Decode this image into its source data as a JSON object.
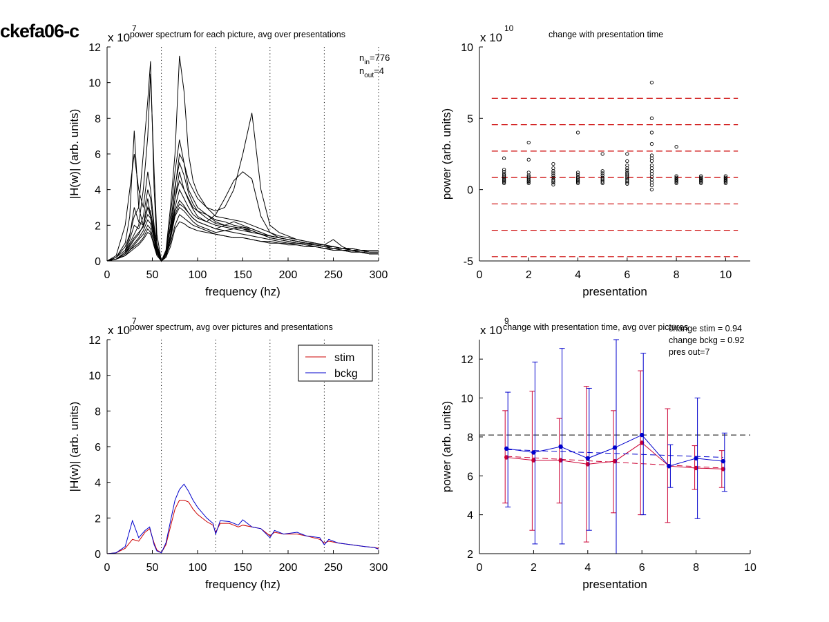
{
  "figure_label": "ckefa06-c",
  "chart_data": [
    {
      "type": "line",
      "title": "power spectrum for each picture, avg over presentations",
      "xlabel": "frequency (hz)",
      "ylabel": "|H(w)| (arb. units)",
      "exponent_label": "x 10",
      "exponent_power": "7",
      "xlim": [
        0,
        300
      ],
      "ylim": [
        0,
        12
      ],
      "xticks": [
        "0",
        "50",
        "100",
        "150",
        "200",
        "250",
        "300"
      ],
      "yticks": [
        "0",
        "2",
        "4",
        "6",
        "8",
        "10",
        "12"
      ],
      "vlines_x": [
        60,
        120,
        180,
        240,
        300
      ],
      "annotation": {
        "n_in_label": "n",
        "n_in_sub": "in",
        "n_in_value": "=776",
        "n_out_label": "n",
        "n_out_sub": "out",
        "n_out_value": "=4"
      },
      "line_color": "#000000",
      "x": [
        0,
        10,
        20,
        25,
        30,
        35,
        40,
        45,
        48,
        52,
        55,
        60,
        65,
        70,
        75,
        80,
        85,
        90,
        95,
        100,
        110,
        120,
        130,
        140,
        150,
        160,
        170,
        180,
        190,
        200,
        210,
        220,
        230,
        240,
        250,
        260,
        270,
        280,
        290,
        300
      ],
      "series": [
        {
          "values": [
            0.0,
            0.3,
            2.0,
            4.0,
            6.0,
            4.0,
            3.0,
            5.0,
            4.0,
            2.0,
            1.0,
            0.0,
            0.3,
            1.5,
            3.5,
            5.0,
            4.0,
            3.5,
            3.0,
            2.8,
            2.6,
            2.2,
            2.0,
            1.9,
            1.8,
            1.6,
            1.5,
            1.4,
            1.3,
            1.2,
            1.1,
            1.0,
            0.9,
            0.8,
            0.7,
            0.6,
            0.6,
            0.5,
            0.5,
            0.5
          ]
        },
        {
          "values": [
            0.0,
            0.2,
            1.0,
            2.5,
            7.3,
            3.0,
            2.0,
            3.5,
            2.5,
            1.5,
            0.8,
            0.0,
            0.5,
            2.5,
            5.0,
            6.8,
            5.5,
            4.0,
            3.5,
            3.0,
            2.6,
            2.3,
            2.2,
            2.0,
            1.9,
            1.7,
            1.5,
            1.3,
            1.2,
            1.1,
            1.0,
            0.9,
            0.8,
            0.7,
            0.6,
            0.6,
            0.5,
            0.5,
            0.4,
            0.4
          ]
        },
        {
          "values": [
            0.0,
            0.2,
            0.8,
            1.5,
            2.5,
            3.0,
            6.0,
            9.0,
            11.2,
            4.0,
            1.0,
            0.0,
            0.6,
            3.0,
            6.0,
            11.5,
            9.5,
            6.0,
            4.5,
            3.8,
            3.0,
            2.5,
            2.4,
            2.3,
            2.2,
            2.0,
            1.8,
            1.6,
            1.4,
            1.3,
            1.2,
            1.1,
            1.0,
            0.9,
            0.8,
            0.7,
            0.7,
            0.6,
            0.6,
            0.6
          ]
        },
        {
          "values": [
            0.0,
            0.1,
            0.5,
            1.0,
            1.5,
            2.0,
            4.0,
            7.0,
            10.5,
            5.0,
            1.5,
            0.0,
            0.4,
            2.0,
            4.0,
            6.0,
            5.5,
            4.5,
            4.0,
            3.5,
            3.0,
            2.8,
            3.0,
            4.0,
            6.0,
            8.3,
            4.0,
            2.0,
            1.6,
            1.4,
            1.2,
            1.1,
            1.0,
            0.9,
            0.8,
            0.7,
            0.6,
            0.6,
            0.5,
            0.5
          ]
        },
        {
          "values": [
            0.0,
            0.1,
            0.4,
            0.8,
            1.2,
            1.5,
            2.0,
            3.0,
            2.5,
            1.5,
            0.6,
            0.0,
            0.3,
            1.5,
            3.0,
            4.0,
            3.5,
            3.0,
            2.6,
            2.4,
            2.2,
            2.6,
            3.5,
            4.5,
            5.0,
            4.6,
            2.5,
            1.6,
            1.3,
            1.2,
            1.1,
            1.0,
            0.9,
            0.8,
            0.7,
            0.6,
            0.6,
            0.5,
            0.4,
            0.4
          ]
        },
        {
          "values": [
            0.0,
            0.1,
            0.3,
            0.6,
            0.9,
            1.2,
            1.5,
            2.0,
            1.8,
            1.0,
            0.5,
            0.0,
            0.2,
            1.2,
            2.5,
            3.0,
            2.8,
            2.5,
            2.2,
            2.0,
            1.8,
            1.6,
            1.7,
            1.8,
            1.9,
            1.8,
            1.6,
            1.4,
            1.3,
            1.2,
            1.1,
            1.0,
            0.9,
            0.9,
            1.2,
            0.8,
            0.6,
            0.5,
            0.4,
            0.4
          ]
        },
        {
          "values": [
            0.0,
            0.1,
            0.3,
            0.5,
            0.7,
            0.9,
            1.2,
            1.6,
            1.5,
            0.9,
            0.4,
            0.0,
            0.3,
            1.0,
            2.0,
            2.6,
            2.4,
            2.2,
            2.0,
            1.9,
            1.7,
            1.5,
            1.4,
            1.3,
            1.3,
            1.2,
            1.1,
            1.0,
            1.0,
            0.9,
            0.9,
            0.8,
            0.8,
            0.7,
            0.7,
            0.6,
            0.5,
            0.5,
            0.4,
            0.4
          ]
        },
        {
          "values": [
            0.0,
            0.1,
            0.4,
            0.7,
            1.0,
            1.3,
            1.7,
            2.3,
            2.1,
            1.2,
            0.5,
            0.0,
            0.4,
            1.4,
            2.8,
            3.4,
            3.1,
            2.7,
            2.4,
            2.2,
            2.0,
            1.8,
            1.7,
            1.6,
            1.5,
            1.4,
            1.3,
            1.2,
            1.1,
            1.0,
            1.0,
            0.9,
            0.9,
            0.8,
            0.8,
            0.7,
            0.7,
            0.6,
            0.5,
            0.5
          ]
        },
        {
          "values": [
            0.0,
            0.1,
            0.5,
            1.2,
            2.0,
            1.8,
            2.5,
            4.0,
            3.5,
            1.8,
            0.7,
            0.0,
            0.5,
            1.8,
            3.5,
            4.5,
            4.0,
            3.4,
            2.9,
            2.5,
            2.2,
            2.0,
            1.9,
            1.8,
            1.7,
            1.6,
            1.5,
            1.3,
            1.2,
            1.1,
            1.0,
            1.0,
            0.9,
            0.8,
            0.7,
            0.7,
            0.6,
            0.6,
            0.5,
            0.5
          ]
        },
        {
          "values": [
            0.0,
            0.1,
            0.3,
            0.6,
            0.8,
            1.0,
            1.3,
            1.8,
            1.6,
            0.8,
            0.3,
            0.0,
            0.2,
            0.8,
            1.8,
            2.2,
            2.1,
            1.9,
            1.8,
            1.7,
            1.6,
            1.5,
            1.4,
            1.3,
            1.3,
            1.2,
            1.1,
            1.1,
            1.0,
            1.0,
            0.9,
            0.8,
            0.8,
            0.7,
            0.6,
            0.6,
            0.5,
            0.5,
            0.4,
            0.4
          ]
        },
        {
          "values": [
            0.0,
            0.2,
            0.6,
            1.4,
            3.0,
            2.2,
            2.0,
            3.0,
            2.8,
            1.6,
            0.6,
            0.0,
            0.4,
            2.0,
            4.2,
            5.5,
            4.8,
            3.8,
            3.2,
            2.8,
            2.4,
            2.1,
            2.0,
            1.9,
            1.8,
            1.7,
            1.5,
            1.4,
            1.3,
            1.2,
            1.1,
            1.0,
            0.9,
            0.8,
            0.8,
            0.7,
            0.6,
            0.6,
            0.5,
            0.5
          ]
        },
        {
          "values": [
            0.0,
            0.1,
            0.4,
            0.9,
            1.3,
            1.6,
            1.9,
            2.6,
            2.4,
            1.3,
            0.5,
            0.0,
            0.3,
            1.3,
            2.6,
            3.2,
            3.0,
            2.7,
            2.4,
            2.2,
            2.0,
            1.8,
            2.0,
            2.2,
            2.0,
            1.8,
            1.6,
            1.4,
            1.3,
            1.2,
            1.1,
            1.0,
            1.0,
            0.9,
            0.8,
            0.7,
            0.7,
            0.6,
            0.5,
            0.5
          ]
        }
      ]
    },
    {
      "type": "scatter",
      "title": "change with presentation time",
      "xlabel": "presentation",
      "ylabel": "power (arb. units)",
      "exponent_label": "x 10",
      "exponent_power": "10",
      "xlim": [
        0,
        11
      ],
      "ylim": [
        -5,
        10
      ],
      "xticks": [
        "0",
        "2",
        "4",
        "6",
        "8",
        "10"
      ],
      "yticks": [
        "-5",
        "0",
        "5",
        "10"
      ],
      "hlines_y": [
        6.4,
        4.55,
        2.7,
        0.85,
        -1.0,
        -2.85,
        -4.7
      ],
      "hline_color": "#cc0000",
      "marker_color": "#000000",
      "points": [
        {
          "x": 1,
          "ys": [
            0.45,
            0.55,
            0.62,
            0.7,
            0.8,
            0.9,
            1.0,
            1.1,
            1.25,
            1.4,
            2.2
          ]
        },
        {
          "x": 2,
          "ys": [
            0.45,
            0.55,
            0.6,
            0.7,
            0.8,
            0.9,
            1.0,
            1.2,
            2.1,
            3.3
          ]
        },
        {
          "x": 3,
          "ys": [
            0.35,
            0.5,
            0.6,
            0.7,
            0.85,
            1.0,
            1.15,
            1.3,
            1.5,
            1.8
          ]
        },
        {
          "x": 4,
          "ys": [
            0.45,
            0.55,
            0.62,
            0.7,
            0.8,
            0.9,
            1.05,
            1.2,
            4.0
          ]
        },
        {
          "x": 5,
          "ys": [
            0.45,
            0.55,
            0.65,
            0.75,
            0.85,
            1.0,
            1.15,
            1.3,
            2.5
          ]
        },
        {
          "x": 6,
          "ys": [
            0.4,
            0.5,
            0.6,
            0.7,
            0.8,
            0.9,
            1.0,
            1.1,
            1.2,
            1.35,
            1.5,
            1.7,
            2.0,
            2.5
          ]
        },
        {
          "x": 7,
          "ys": [
            0.0,
            0.3,
            0.5,
            0.7,
            0.9,
            1.1,
            1.3,
            1.5,
            1.7,
            2.0,
            2.2,
            2.4,
            3.2,
            4.0,
            5.0,
            7.5
          ]
        },
        {
          "x": 8,
          "ys": [
            0.45,
            0.55,
            0.62,
            0.7,
            0.78,
            0.85,
            0.95,
            3.0
          ]
        },
        {
          "x": 9,
          "ys": [
            0.45,
            0.55,
            0.62,
            0.7,
            0.78,
            0.85,
            0.95
          ]
        },
        {
          "x": 10,
          "ys": [
            0.45,
            0.55,
            0.62,
            0.7,
            0.78,
            0.85,
            0.95
          ]
        }
      ]
    },
    {
      "type": "line",
      "title": "power spectrum, avg over pictures and presentations",
      "xlabel": "frequency (hz)",
      "ylabel": "|H(w)| (arb. units)",
      "exponent_label": "x 10",
      "exponent_power": "7",
      "xlim": [
        0,
        300
      ],
      "ylim": [
        0,
        12
      ],
      "xticks": [
        "0",
        "50",
        "100",
        "150",
        "200",
        "250",
        "300"
      ],
      "yticks": [
        "0",
        "2",
        "4",
        "6",
        "8",
        "10",
        "12"
      ],
      "vlines_x": [
        60,
        120,
        180,
        240,
        300
      ],
      "legend_position": "top-right",
      "x": [
        0,
        10,
        20,
        28,
        35,
        42,
        47,
        52,
        55,
        60,
        65,
        70,
        75,
        80,
        85,
        90,
        95,
        100,
        110,
        117,
        120,
        125,
        135,
        145,
        150,
        160,
        170,
        180,
        185,
        195,
        210,
        220,
        235,
        240,
        245,
        255,
        270,
        285,
        295,
        300
      ],
      "series": [
        {
          "name": "stim",
          "color": "#cc0000",
          "values": [
            0.0,
            0.05,
            0.3,
            0.8,
            0.7,
            1.2,
            1.4,
            0.6,
            0.2,
            0.05,
            0.5,
            1.5,
            2.5,
            3.0,
            3.0,
            2.9,
            2.5,
            2.2,
            1.8,
            1.6,
            1.2,
            1.7,
            1.7,
            1.5,
            1.6,
            1.5,
            1.4,
            1.0,
            1.2,
            1.1,
            1.1,
            1.0,
            0.8,
            0.6,
            0.7,
            0.6,
            0.5,
            0.4,
            0.35,
            0.3
          ]
        },
        {
          "name": "bckg",
          "color": "#0000cc",
          "values": [
            0.0,
            0.05,
            0.4,
            1.85,
            0.9,
            1.3,
            1.5,
            0.5,
            0.15,
            0.05,
            0.6,
            1.8,
            3.0,
            3.6,
            3.9,
            3.5,
            3.0,
            2.6,
            2.0,
            1.7,
            1.1,
            1.85,
            1.8,
            1.6,
            1.9,
            1.5,
            1.4,
            0.9,
            1.3,
            1.1,
            1.2,
            1.0,
            0.9,
            0.5,
            0.8,
            0.6,
            0.5,
            0.4,
            0.35,
            0.25
          ]
        }
      ]
    },
    {
      "type": "line",
      "title": "change with presentation time, avg over pictures",
      "xlabel": "presentation",
      "ylabel": "power (arb. units)",
      "exponent_label": "x 10",
      "exponent_power": "9",
      "xlim": [
        0,
        10
      ],
      "ylim": [
        2,
        13
      ],
      "xticks": [
        "0",
        "2",
        "4",
        "6",
        "8",
        "10"
      ],
      "yticks": [
        "2",
        "4",
        "6",
        "8",
        "10",
        "12"
      ],
      "reference_hline_y": 8.1,
      "annotations": [
        "change stim = 0.94",
        "change bckg = 0.92",
        "pres out=7"
      ],
      "x": [
        1,
        2,
        3,
        4,
        5,
        6,
        7,
        8,
        9
      ],
      "series": [
        {
          "name": "stim",
          "color": "#cc0033",
          "values": [
            6.95,
            6.8,
            6.8,
            6.6,
            6.75,
            7.7,
            6.5,
            6.4,
            6.35
          ],
          "err_low": [
            4.6,
            3.2,
            4.6,
            2.6,
            4.1,
            4.0,
            3.6,
            5.3,
            5.4
          ],
          "err_high": [
            9.35,
            10.35,
            8.95,
            10.6,
            9.35,
            11.4,
            9.45,
            7.55,
            7.3
          ],
          "trend": [
            7.0,
            6.4
          ]
        },
        {
          "name": "bckg",
          "color": "#0000cc",
          "values": [
            7.4,
            7.2,
            7.5,
            6.9,
            7.45,
            8.1,
            6.5,
            6.9,
            6.75
          ],
          "err_low": [
            4.4,
            2.5,
            2.5,
            3.2,
            1.8,
            4.0,
            5.4,
            3.8,
            5.2
          ],
          "err_high": [
            10.3,
            11.85,
            12.55,
            10.5,
            13.0,
            12.3,
            7.6,
            10.0,
            8.2
          ],
          "trend": [
            7.35,
            6.95
          ]
        }
      ]
    }
  ]
}
